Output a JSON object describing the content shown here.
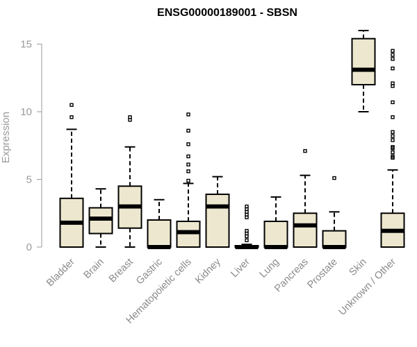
{
  "chart_data": {
    "type": "box",
    "title": "ENSG00000189001 - SBSN",
    "xlabel": "",
    "ylabel": "Expression",
    "ylim": [
      0,
      15.6
    ],
    "yticks": [
      0,
      5,
      10,
      15
    ],
    "grid": false,
    "box_fill": "#ede7cf",
    "box_stroke": "#000000",
    "outlier_stroke": "#000000",
    "categories": [
      "Bladder",
      "Brain",
      "Breast",
      "Gastric",
      "Hematopoietic cells",
      "Kidney",
      "Liver",
      "Lung",
      "Pancreas",
      "Prostate",
      "Skin",
      "Unknown / Other"
    ],
    "boxes": [
      {
        "category": "Bladder",
        "whisker_low": 0,
        "q1": 0,
        "median": 1.8,
        "q3": 3.6,
        "whisker_high": 8.7,
        "outliers": [
          9.6,
          10.5
        ]
      },
      {
        "category": "Brain",
        "whisker_low": 0,
        "q1": 1.0,
        "median": 2.1,
        "q3": 2.9,
        "whisker_high": 4.3,
        "outliers": []
      },
      {
        "category": "Breast",
        "whisker_low": 0,
        "q1": 1.4,
        "median": 3.0,
        "q3": 4.5,
        "whisker_high": 7.4,
        "outliers": [
          9.4,
          9.6
        ]
      },
      {
        "category": "Gastric",
        "whisker_low": 0,
        "q1": 0,
        "median": 0,
        "q3": 2.0,
        "whisker_high": 3.5,
        "outliers": []
      },
      {
        "category": "Hematopoietic cells",
        "whisker_low": 0,
        "q1": 0,
        "median": 1.1,
        "q3": 1.9,
        "whisker_high": 4.7,
        "outliers": [
          4.9,
          5.6,
          6.1,
          6.7,
          7.6,
          8.6,
          9.8
        ]
      },
      {
        "category": "Kidney",
        "whisker_low": 0,
        "q1": 0,
        "median": 3.0,
        "q3": 3.9,
        "whisker_high": 5.2,
        "outliers": []
      },
      {
        "category": "Liver",
        "whisker_low": 0,
        "q1": 0,
        "median": 0,
        "q3": 0.1,
        "whisker_high": 0.2,
        "outliers": [
          0.5,
          0.8,
          1.0,
          1.2,
          2.2,
          2.4,
          2.6,
          2.8,
          3.0
        ]
      },
      {
        "category": "Lung",
        "whisker_low": 0,
        "q1": 0,
        "median": 0,
        "q3": 1.9,
        "whisker_high": 3.7,
        "outliers": []
      },
      {
        "category": "Pancreas",
        "whisker_low": 0,
        "q1": 0,
        "median": 1.6,
        "q3": 2.5,
        "whisker_high": 5.3,
        "outliers": [
          7.1
        ]
      },
      {
        "category": "Prostate",
        "whisker_low": 0,
        "q1": 0,
        "median": 0,
        "q3": 1.2,
        "whisker_high": 2.6,
        "outliers": [
          5.1
        ]
      },
      {
        "category": "Skin",
        "whisker_low": 10.0,
        "q1": 12.0,
        "median": 13.1,
        "q3": 15.4,
        "whisker_high": 16.0,
        "outliers": []
      },
      {
        "category": "Unknown / Other",
        "whisker_low": 0,
        "q1": 0,
        "median": 1.2,
        "q3": 2.5,
        "whisker_high": 5.7,
        "outliers": [
          6.6,
          6.7,
          7.0,
          7.3,
          7.4,
          7.9,
          8.2,
          8.5,
          9.6,
          10.7,
          11.9,
          12.1,
          13.2,
          13.9,
          14.2,
          14.5
        ]
      }
    ]
  }
}
